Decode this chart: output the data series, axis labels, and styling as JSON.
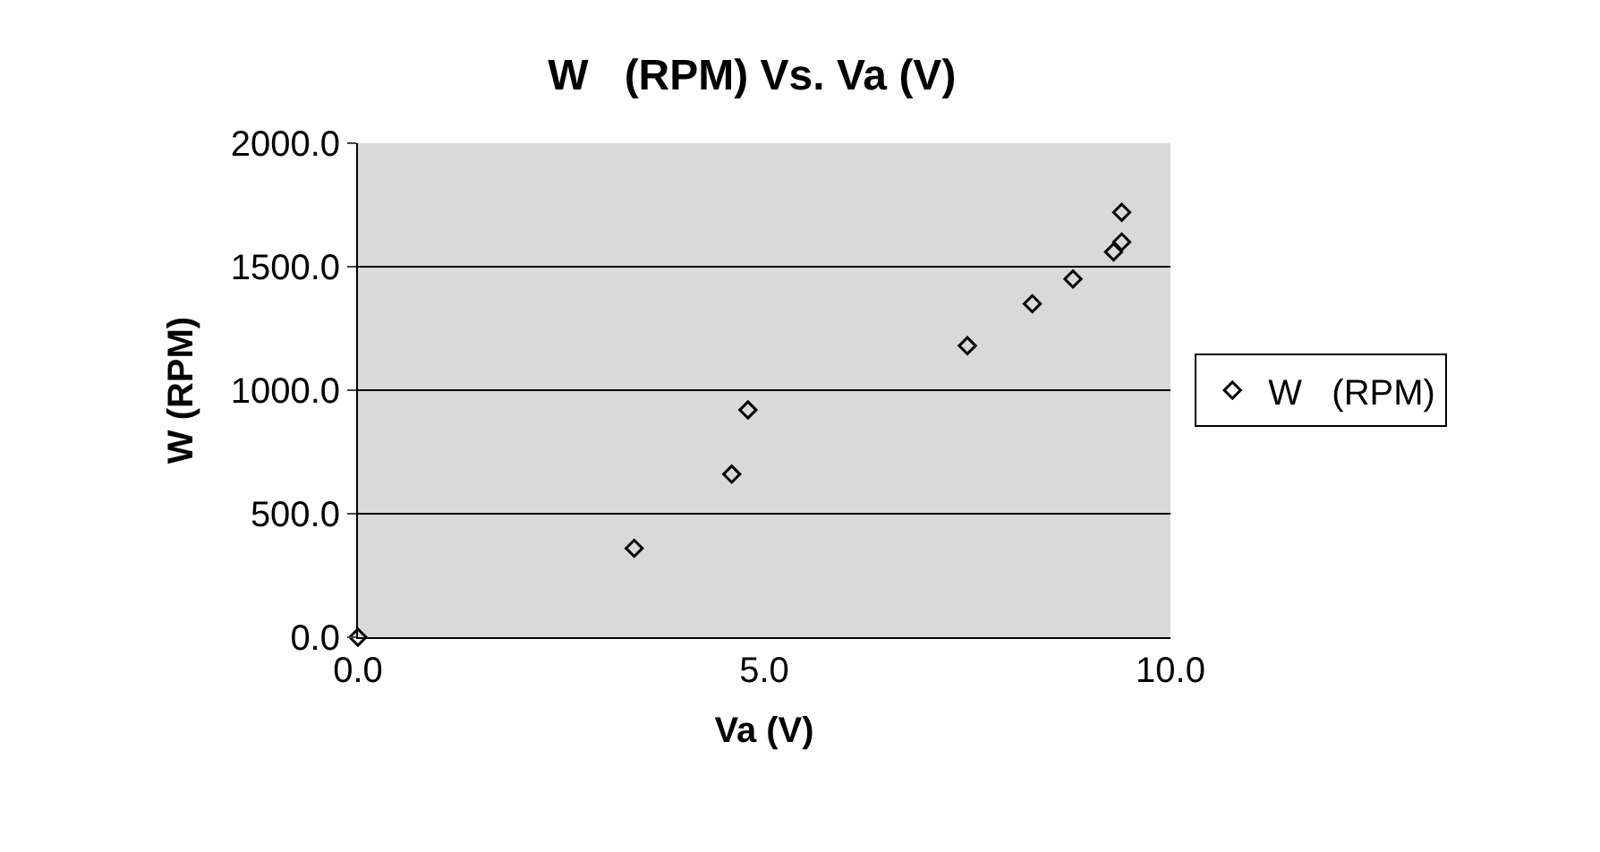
{
  "chart_data": {
    "type": "scatter",
    "title": "W   (RPM) Vs. Va (V)",
    "xlabel": "Va (V)",
    "ylabel": "W (RPM)",
    "x": [
      0,
      3.4,
      4.6,
      4.8,
      7.5,
      8.3,
      8.8,
      9.3,
      9.4,
      9.4
    ],
    "series": [
      {
        "name": "W   (RPM)",
        "color": "#000000",
        "values": [
          0,
          360,
          660,
          920,
          1180,
          1350,
          1450,
          1560,
          1600,
          1720
        ]
      }
    ],
    "xlim": [
      0,
      10
    ],
    "xticks": [
      {
        "value": 0,
        "label": "0.0"
      },
      {
        "value": 5,
        "label": "5.0"
      },
      {
        "value": 10,
        "label": "10.0"
      }
    ],
    "ylim": [
      0,
      2000
    ],
    "yticks": [
      {
        "value": 0,
        "label": "0.0"
      },
      {
        "value": 500,
        "label": "500.0"
      },
      {
        "value": 1000,
        "label": "1000.0"
      },
      {
        "value": 1500,
        "label": "1500.0"
      },
      {
        "value": 2000,
        "label": "2000.0"
      }
    ],
    "grid": "y",
    "legend": "right",
    "marker": "diamond"
  }
}
